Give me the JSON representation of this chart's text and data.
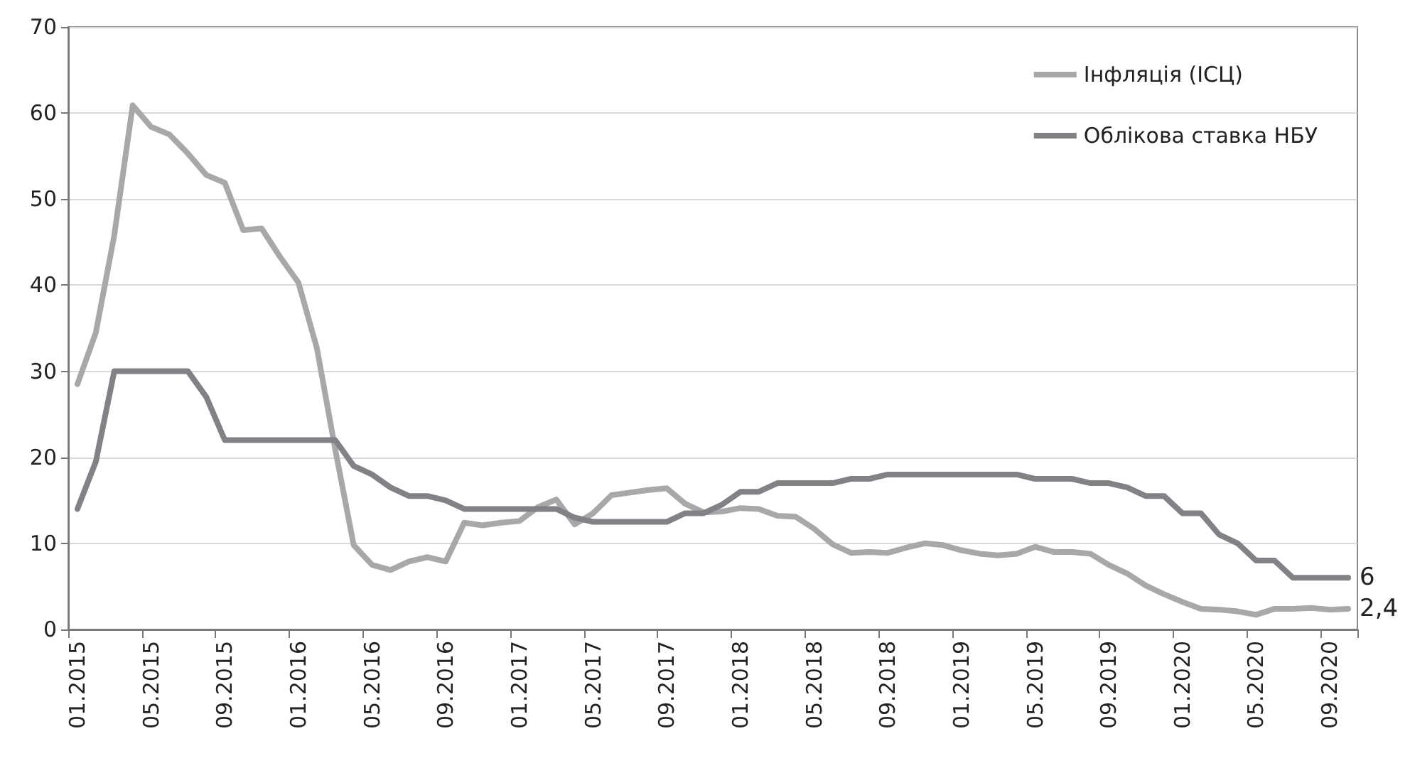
{
  "chart_data": {
    "type": "line",
    "categories": [
      "01.2015",
      null,
      null,
      null,
      "05.2015",
      null,
      null,
      null,
      "09.2015",
      null,
      null,
      null,
      "01.2016",
      null,
      null,
      null,
      "05.2016",
      null,
      null,
      null,
      "09.2016",
      null,
      null,
      null,
      "01.2017",
      null,
      null,
      null,
      "05.2017",
      null,
      null,
      null,
      "09.2017",
      null,
      null,
      null,
      "01.2018",
      null,
      null,
      null,
      "05.2018",
      null,
      null,
      null,
      "09.2018",
      null,
      null,
      null,
      "01.2019",
      null,
      null,
      null,
      "05.2019",
      null,
      null,
      null,
      "09.2019",
      null,
      null,
      null,
      "01.2020",
      null,
      null,
      null,
      "05.2020",
      null,
      null,
      null,
      "09.2020",
      null
    ],
    "series": [
      {
        "name": "Інфляція (ІСЦ)",
        "color": "#a7a8aa",
        "values": [
          28.5,
          34.5,
          45.8,
          60.9,
          58.4,
          57.5,
          55.3,
          52.8,
          51.9,
          46.4,
          46.6,
          43.3,
          40.3,
          32.7,
          20.9,
          9.8,
          7.5,
          6.9,
          7.9,
          8.4,
          7.9,
          12.4,
          12.1,
          12.4,
          12.6,
          14.2,
          15.1,
          12.2,
          13.5,
          15.6,
          15.9,
          16.2,
          16.4,
          14.6,
          13.6,
          13.7,
          14.1,
          14.0,
          13.2,
          13.1,
          11.7,
          9.9,
          8.9,
          9.0,
          8.9,
          9.5,
          10.0,
          9.8,
          9.2,
          8.8,
          8.6,
          8.8,
          9.6,
          9.0,
          9.0,
          8.8,
          7.5,
          6.5,
          5.1,
          4.1,
          3.2,
          2.4,
          2.3,
          2.1,
          1.7,
          2.4,
          2.4,
          2.5,
          2.3,
          2.4
        ],
        "value_labels": [
          null,
          null,
          null,
          null,
          null,
          null,
          null,
          null,
          null,
          null,
          null,
          null,
          null,
          null,
          null,
          null,
          null,
          null,
          null,
          null,
          null,
          null,
          null,
          null,
          null,
          null,
          null,
          null,
          null,
          null,
          null,
          null,
          null,
          null,
          null,
          null,
          null,
          null,
          null,
          null,
          null,
          null,
          null,
          null,
          null,
          null,
          null,
          null,
          null,
          null,
          null,
          null,
          null,
          null,
          null,
          null,
          null,
          null,
          null,
          null,
          null,
          null,
          null,
          null,
          null,
          null,
          null,
          null,
          null,
          "2,4"
        ]
      },
      {
        "name": "Облікова ставка НБУ",
        "color": "#808285",
        "values": [
          14,
          19.5,
          30,
          30,
          30,
          30,
          30,
          27,
          22,
          22,
          22,
          22,
          22,
          22,
          22,
          19,
          18,
          16.5,
          15.5,
          15.5,
          15,
          14,
          14,
          14,
          14,
          14,
          14,
          13,
          12.5,
          12.5,
          12.5,
          12.5,
          12.5,
          13.5,
          13.5,
          14.5,
          16,
          16,
          17,
          17,
          17,
          17,
          17.5,
          17.5,
          18,
          18,
          18,
          18,
          18,
          18,
          18,
          18,
          17.5,
          17.5,
          17.5,
          17,
          17,
          16.5,
          15.5,
          15.5,
          13.5,
          13.5,
          11,
          10,
          8,
          8,
          6,
          6,
          6,
          6
        ],
        "value_labels": [
          null,
          null,
          null,
          null,
          null,
          null,
          null,
          null,
          null,
          null,
          null,
          null,
          null,
          null,
          null,
          null,
          null,
          null,
          null,
          null,
          null,
          null,
          null,
          null,
          null,
          null,
          null,
          null,
          null,
          null,
          null,
          null,
          null,
          null,
          null,
          null,
          null,
          null,
          null,
          null,
          null,
          null,
          null,
          null,
          null,
          null,
          null,
          null,
          null,
          null,
          null,
          null,
          null,
          null,
          null,
          null,
          null,
          null,
          null,
          null,
          null,
          null,
          null,
          null,
          null,
          null,
          null,
          null,
          null,
          "6"
        ]
      }
    ],
    "ylim": [
      0,
      70
    ],
    "yticks": [
      0,
      10,
      20,
      30,
      40,
      50,
      60,
      70
    ],
    "grid": "y",
    "legend": "top right",
    "marker": "none",
    "line_style": "solid"
  }
}
